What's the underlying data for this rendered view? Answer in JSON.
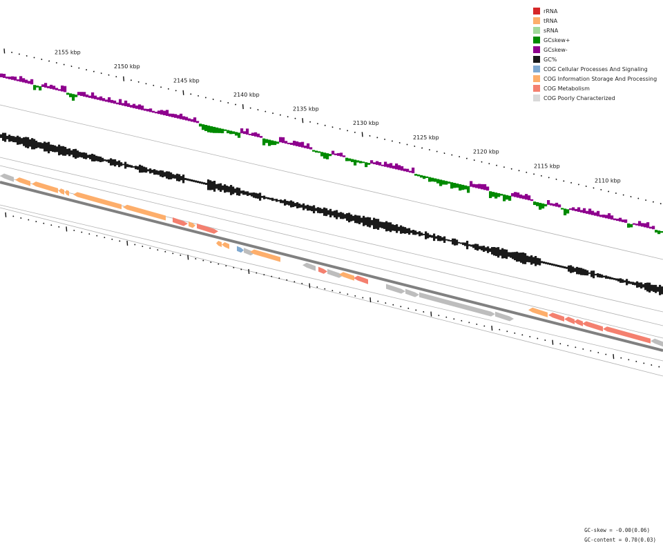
{
  "legend": [
    {
      "label": "rRNA",
      "color": "#d62728"
    },
    {
      "label": "tRNA",
      "color": "#fdae6b"
    },
    {
      "label": "sRNA",
      "color": "#a1d99b"
    },
    {
      "label": "GCskew+",
      "color": "#008a00"
    },
    {
      "label": "GCskew-",
      "color": "#8e008e"
    },
    {
      "label": "GC%",
      "color": "#1a1a1a"
    },
    {
      "label": "COG Cellular Processes And Signaling",
      "color": "#7fa9d1"
    },
    {
      "label": "COG Information Storage And Processing",
      "color": "#fdae6b"
    },
    {
      "label": "COG Metabolism",
      "color": "#f4806f"
    },
    {
      "label": "COG Poorly Characterized",
      "color": "#d9d9d9"
    }
  ],
  "scale": {
    "unit": "kbp",
    "labels": [
      "2155 kbp",
      "2150 kbp",
      "2145 kbp",
      "2140 kbp",
      "2135 kbp",
      "2130 kbp",
      "2125 kbp",
      "2120 kbp",
      "2115 kbp",
      "2110 kbp"
    ]
  },
  "stats": {
    "gc_skew": "GC-skew = -0.00(0.06)",
    "gc_content": "GC-content = 0.70(0.03)"
  },
  "colors": {
    "skew_pos": "#008a00",
    "skew_neg": "#8e008e",
    "gc": "#1a1a1a",
    "backbone": "#808080",
    "gene_orange": "#fdae6b",
    "gene_red": "#f4806f",
    "gene_grey": "#bdbdbd",
    "gene_blue": "#7fa9d1"
  }
}
